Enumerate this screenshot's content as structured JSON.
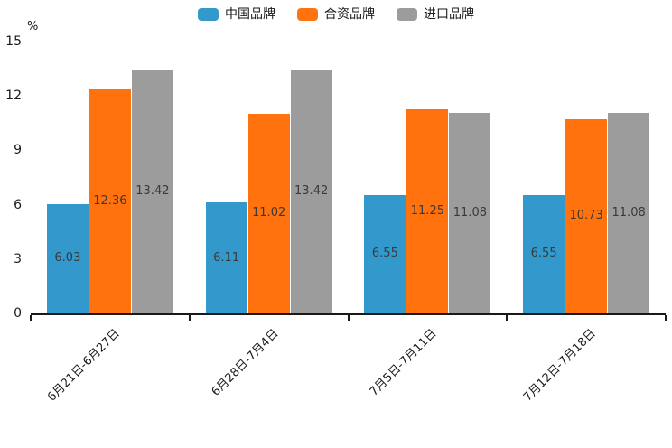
{
  "chart_data": {
    "type": "bar",
    "title": "",
    "ylabel": "%",
    "xlabel": "",
    "categories": [
      "6月21日-6月27日",
      "6月28日-7月4日",
      "7月5日-7月11日",
      "7月12日-7月18日"
    ],
    "series": [
      {
        "name": "中国品牌",
        "color": "#3398CB",
        "values": [
          6.03,
          6.11,
          6.55,
          6.55
        ]
      },
      {
        "name": "合资品牌",
        "color": "#FF720E",
        "values": [
          12.36,
          11.02,
          11.25,
          10.73
        ]
      },
      {
        "name": "进口品牌",
        "color": "#9C9C9C",
        "values": [
          13.42,
          13.42,
          11.08,
          11.08
        ]
      }
    ],
    "ylim": [
      0,
      15
    ],
    "yticks": [
      0,
      3,
      6,
      9,
      12,
      15
    ],
    "grid": false,
    "legend_position": "top",
    "bar_labels_visible": true,
    "bar_label_color": "#3A3A3A",
    "axis_color": "#1A1A1A",
    "background_color": "#FFFFFF"
  }
}
